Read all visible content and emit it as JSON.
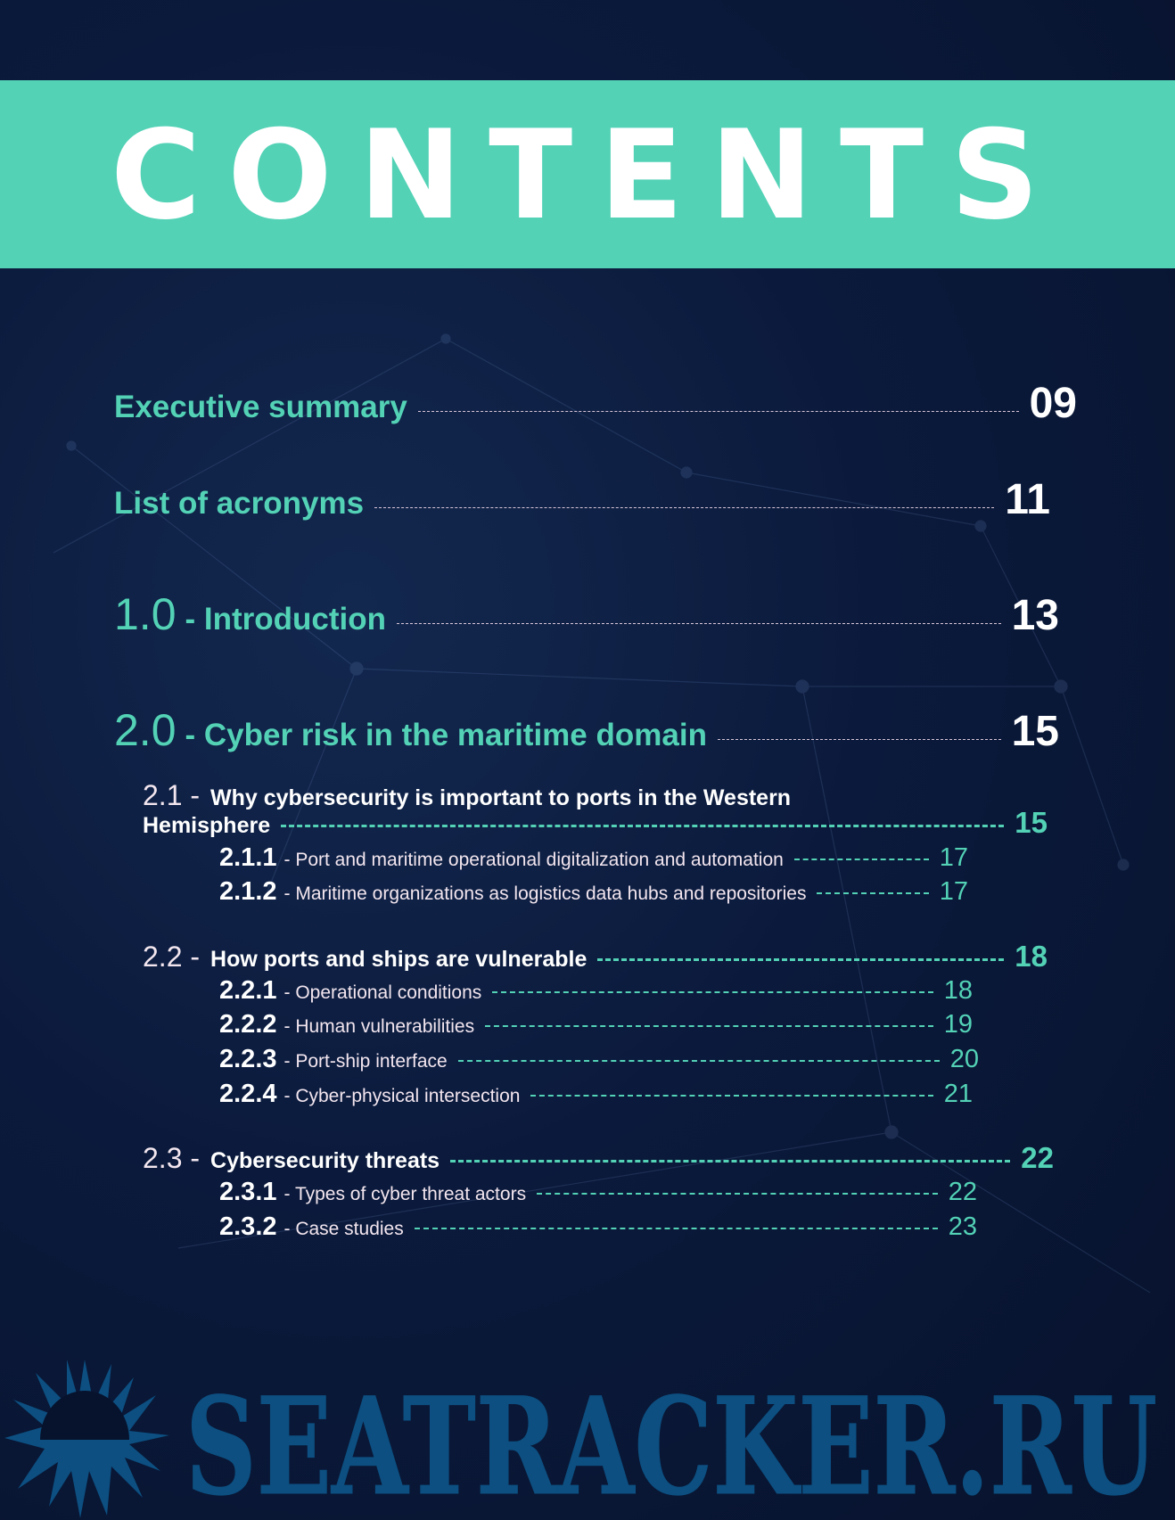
{
  "title": "CONTENTS",
  "entries": [
    {
      "label": "Executive summary",
      "page": "09"
    },
    {
      "label": "List of acronyms",
      "page": "11"
    },
    {
      "num": "1.0",
      "label": "- Introduction",
      "page": "13"
    },
    {
      "num": "2.0",
      "label": "- Cyber risk in the maritime domain",
      "page": "15"
    }
  ],
  "sections": {
    "s21": {
      "num": "2.1 -",
      "label_line1": "Why cybersecurity is important to ports in the Western",
      "label_line2": "Hemisphere",
      "page": "15"
    },
    "s211": {
      "num": "2.1.1",
      "label": "- Port and maritime operational digitalization and automation",
      "page": "17"
    },
    "s212": {
      "num": "2.1.2",
      "label": "- Maritime organizations as logistics data hubs and repositories",
      "page": "17"
    },
    "s22": {
      "num": "2.2 -",
      "label": "How ports and ships are vulnerable",
      "page": "18"
    },
    "s221": {
      "num": "2.2.1",
      "label": "- Operational conditions",
      "page": "18"
    },
    "s222": {
      "num": "2.2.2",
      "label": "- Human vulnerabilities",
      "page": "19"
    },
    "s223": {
      "num": "2.2.3",
      "label": "- Port-ship interface",
      "page": "20"
    },
    "s224": {
      "num": "2.2.4",
      "label": "- Cyber-physical intersection",
      "page": "21"
    },
    "s23": {
      "num": "2.3 -",
      "label": "Cybersecurity threats",
      "page": "22"
    },
    "s231": {
      "num": "2.3.1",
      "label": "- Types of cyber threat actors",
      "page": "22"
    },
    "s232": {
      "num": "2.3.2",
      "label": "- Case studies",
      "page": "23"
    }
  },
  "watermark": "SEATRACKER.RU",
  "colors": {
    "accent": "#53d2b6",
    "background": "#0b1a3c",
    "text": "#f3e6ef",
    "watermark": "#0d5689"
  }
}
